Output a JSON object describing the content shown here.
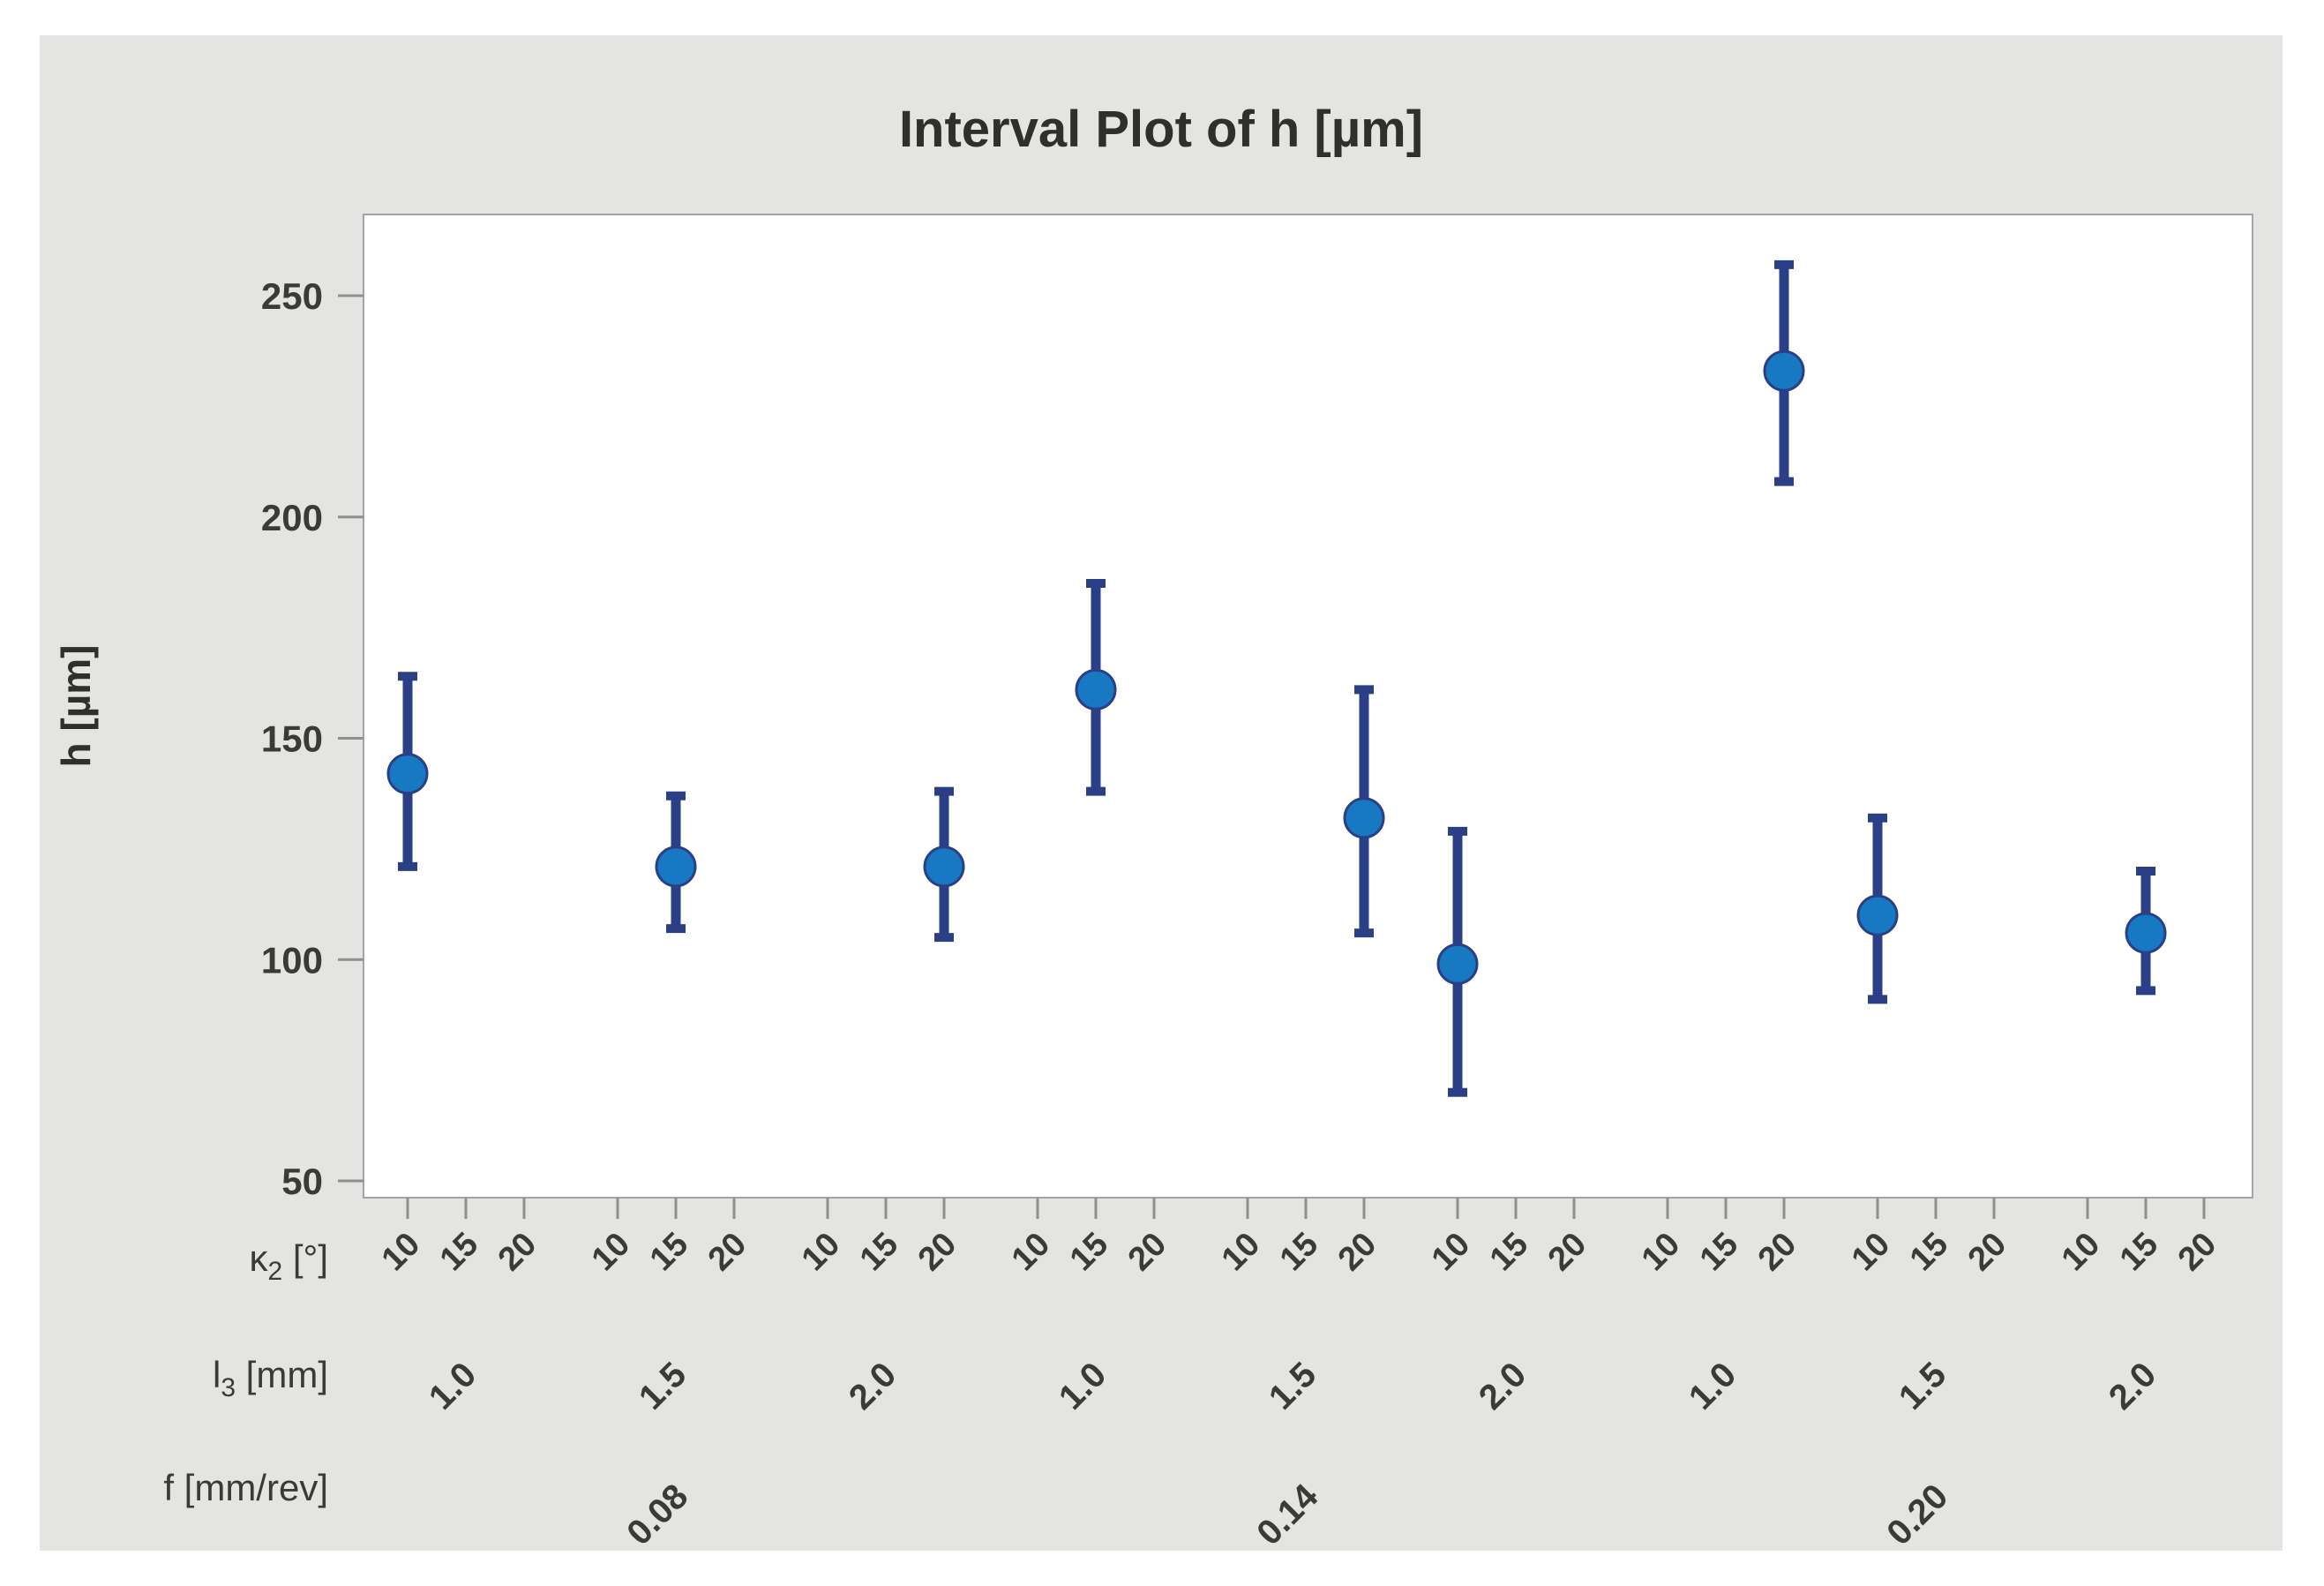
{
  "figure": {
    "title": "Interval Plot of h [µm]"
  },
  "chart_data": {
    "type": "interval",
    "title": "Interval Plot of h [µm]",
    "ylabel": "h [µm]",
    "ylim": [
      46,
      268
    ],
    "yticks": [
      250,
      200,
      150,
      100,
      50
    ],
    "grid": false,
    "legend": "none",
    "kappa_levels": [
      "10",
      "15",
      "20"
    ],
    "l3_by_group": [
      "1.0",
      "1.5",
      "2.0",
      "1.0",
      "1.5",
      "2.0",
      "1.0",
      "1.5",
      "2.0"
    ],
    "f_levels": [
      "0.08",
      "0.14",
      "0.20"
    ],
    "factor_rows": [
      {
        "sym": "κ",
        "sub": "2",
        "rest": " [°]"
      },
      {
        "sym": "l",
        "sub": "3",
        "rest": " [mm]"
      },
      {
        "sym": "f",
        "sub": "",
        "rest": " [mm/rev]"
      }
    ],
    "points": [
      {
        "f": "0.08",
        "l3": "1.0",
        "kappa2": "10",
        "mean": 142,
        "ci_low": 121,
        "ci_high": 164
      },
      {
        "f": "0.08",
        "l3": "1.5",
        "kappa2": "15",
        "mean": 121,
        "ci_low": 107,
        "ci_high": 137
      },
      {
        "f": "0.08",
        "l3": "2.0",
        "kappa2": "20",
        "mean": 121,
        "ci_low": 105,
        "ci_high": 138
      },
      {
        "f": "0.14",
        "l3": "1.0",
        "kappa2": "15",
        "mean": 161,
        "ci_low": 138,
        "ci_high": 185
      },
      {
        "f": "0.14",
        "l3": "1.5",
        "kappa2": "20",
        "mean": 132,
        "ci_low": 106,
        "ci_high": 161
      },
      {
        "f": "0.14",
        "l3": "2.0",
        "kappa2": "10",
        "mean": 99,
        "ci_low": 70,
        "ci_high": 129
      },
      {
        "f": "0.20",
        "l3": "1.0",
        "kappa2": "20",
        "mean": 233,
        "ci_low": 208,
        "ci_high": 257
      },
      {
        "f": "0.20",
        "l3": "1.5",
        "kappa2": "10",
        "mean": 110,
        "ci_low": 91,
        "ci_high": 132
      },
      {
        "f": "0.20",
        "l3": "2.0",
        "kappa2": "15",
        "mean": 106,
        "ci_low": 93,
        "ci_high": 120
      }
    ],
    "colors": {
      "panel": "#e4e4e3",
      "plot_bg": "#ffffff",
      "frame": "#a5a5a5",
      "axis_tick": "#8f8f8f",
      "marker": "#1779c1",
      "interval": "#2b3f87",
      "title_text": "#2f2f2e",
      "tick_text": "#3a3a38"
    }
  }
}
